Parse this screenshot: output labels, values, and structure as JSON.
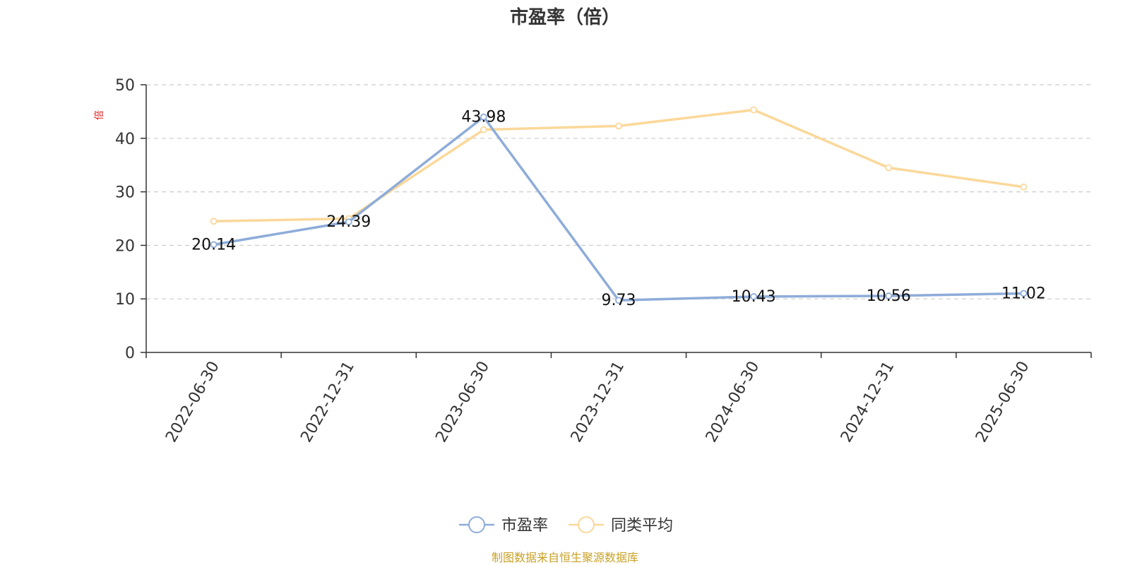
{
  "chart_data": {
    "type": "line",
    "title": "市盈率（倍）",
    "ylabel": "倍",
    "xlabel": "",
    "categories": [
      "2022-06-30",
      "2022-12-31",
      "2023-06-30",
      "2023-12-31",
      "2024-06-30",
      "2024-12-31",
      "2025-06-30"
    ],
    "ylim": [
      0,
      50
    ],
    "yticks": [
      0,
      10,
      20,
      30,
      40,
      50
    ],
    "grid": true,
    "legend_position": "bottom-center",
    "series": [
      {
        "name": "市盈率",
        "color": "#8eacd9",
        "values": [
          20.14,
          24.39,
          43.98,
          9.73,
          10.43,
          10.56,
          11.02
        ],
        "data_labels": [
          "20.14",
          "24.39",
          "43.98",
          "9.73",
          "10.43",
          "10.56",
          "11.02"
        ]
      },
      {
        "name": "同类平均",
        "color": "#fbd89a",
        "values": [
          24.5,
          25.0,
          41.6,
          42.3,
          45.3,
          34.5,
          30.9
        ]
      }
    ],
    "source_note": "制图数据来自恒生聚源数据库",
    "source_color": "#c9a227",
    "ylabel_color": "#e02020"
  }
}
